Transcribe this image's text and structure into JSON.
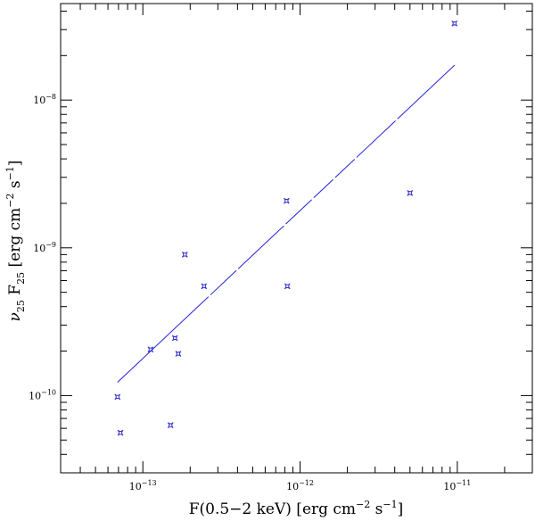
{
  "chart_data": {
    "type": "scatter",
    "xlabel": "F(0.5−2 keV) [erg cm",
    "xlabel_exp1": "−2",
    "xlabel_mid": " s",
    "xlabel_exp2": "−1",
    "xlabel_end": "]",
    "ylabel_nu": "ν",
    "ylabel_nu_sub": "25",
    "ylabel_f": " F",
    "ylabel_f_sub": "25",
    "ylabel_rest": " [erg cm",
    "ylabel_exp1": "−2",
    "ylabel_mid": " s",
    "ylabel_exp2": "−1",
    "ylabel_end": "]",
    "x_scale": "log",
    "y_scale": "log",
    "xlim": [
      3e-14,
      3e-11
    ],
    "ylim": [
      3e-11,
      4.5e-08
    ],
    "x_tick_labels": [
      {
        "value": 1e-13,
        "base": "10",
        "exp": "−13"
      },
      {
        "value": 1e-12,
        "base": "10",
        "exp": "−12"
      },
      {
        "value": 1e-11,
        "base": "10",
        "exp": "−11"
      }
    ],
    "y_tick_labels": [
      {
        "value": 1e-10,
        "base": "10",
        "exp": "−10"
      },
      {
        "value": 1e-09,
        "base": "10",
        "exp": "−9"
      },
      {
        "value": 1e-08,
        "base": "10",
        "exp": "−8"
      }
    ],
    "series": [
      {
        "points": [
          {
            "x": 6.9e-14,
            "y": 9.8e-11
          },
          {
            "x": 7.2e-14,
            "y": 5.6e-11
          },
          {
            "x": 1.12e-13,
            "y": 2.05e-10
          },
          {
            "x": 1.5e-13,
            "y": 6.3e-11
          },
          {
            "x": 1.6e-13,
            "y": 2.45e-10
          },
          {
            "x": 1.68e-13,
            "y": 1.92e-10
          },
          {
            "x": 1.85e-13,
            "y": 9e-10
          },
          {
            "x": 2.45e-13,
            "y": 5.5e-10
          },
          {
            "x": 8.2e-13,
            "y": 2.08e-09
          },
          {
            "x": 8.3e-13,
            "y": 5.5e-10
          },
          {
            "x": 5e-12,
            "y": 2.35e-09
          },
          {
            "x": 9.6e-12,
            "y": 3.3e-08
          }
        ]
      }
    ],
    "fit_line": {
      "x": [
        6.9e-14,
        9.6e-12
      ],
      "y": [
        1.23e-10,
        1.72e-08
      ]
    },
    "colors": {
      "points": "#3333cc",
      "line": "#2222dd",
      "axes": "#000000"
    }
  }
}
